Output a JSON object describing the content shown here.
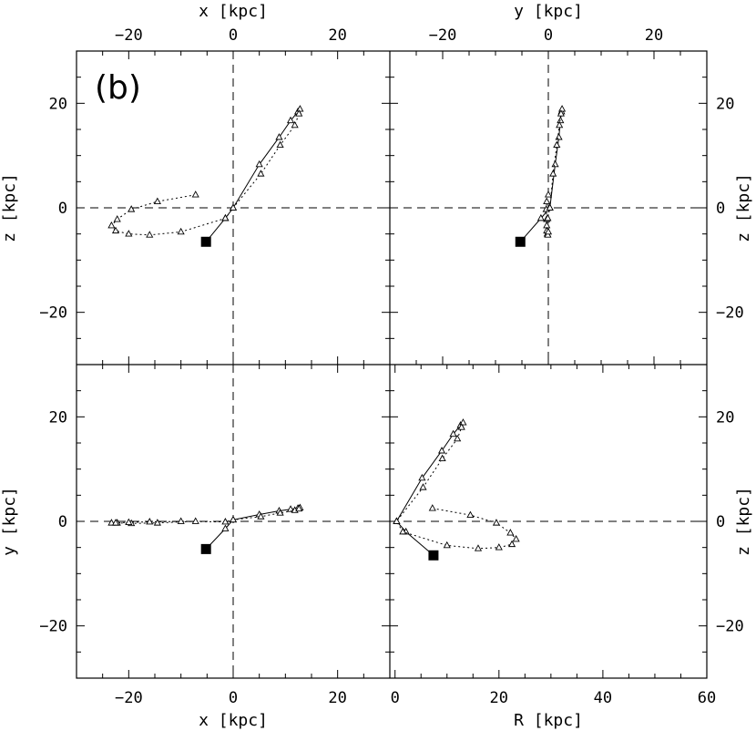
{
  "chart_data": {
    "type": "line",
    "title": "",
    "panel_tag": "(b)",
    "labels": {
      "top_left_x": "x [kpc]",
      "top_right_x": "y [kpc]",
      "bottom_left_x": "x [kpc]",
      "bottom_right_x": "R [kpc]",
      "left_top_y": "z [kpc]",
      "left_bottom_y": "y [kpc]",
      "right_top_y": "z [kpc]",
      "right_bottom_y": "z [kpc]"
    },
    "ranges": {
      "x": [
        -30,
        30
      ],
      "y": [
        -30,
        30
      ],
      "z": [
        -30,
        30
      ],
      "R": [
        -1,
        60
      ]
    },
    "ticks": {
      "major": [
        -20,
        0,
        20
      ],
      "major_R": [
        0,
        20,
        40,
        60
      ]
    },
    "start_point": {
      "x": -5.2,
      "y": -5.3,
      "z": -6.5,
      "R": 7.4
    },
    "series": [
      {
        "name": "solid orbit",
        "style": "solid",
        "points": [
          {
            "x": -5.2,
            "y": -5.3,
            "z": -6.5,
            "R": 7.4
          },
          {
            "x": -1.5,
            "y": -1.4,
            "z": -2.0,
            "R": 2.1
          },
          {
            "x": 0.0,
            "y": 0.3,
            "z": 0.0,
            "R": 0.3
          },
          {
            "x": 5.0,
            "y": 1.3,
            "z": 8.3,
            "R": 5.2
          },
          {
            "x": 8.8,
            "y": 2.0,
            "z": 13.5,
            "R": 9.0
          },
          {
            "x": 11.0,
            "y": 2.3,
            "z": 16.7,
            "R": 11.2
          },
          {
            "x": 12.4,
            "y": 2.5,
            "z": 18.4,
            "R": 12.6
          },
          {
            "x": 12.8,
            "y": 2.6,
            "z": 18.9,
            "R": 13.1
          }
        ]
      },
      {
        "name": "dotted orbit",
        "style": "dotted",
        "points": [
          {
            "x": -7.2,
            "y": 0.0,
            "z": 2.5,
            "R": 7.2
          },
          {
            "x": -14.5,
            "y": -0.3,
            "z": 1.2,
            "R": 14.5
          },
          {
            "x": -19.5,
            "y": -0.4,
            "z": -0.3,
            "R": 19.5
          },
          {
            "x": -22.2,
            "y": -0.3,
            "z": -2.2,
            "R": 22.2
          },
          {
            "x": -23.3,
            "y": -0.3,
            "z": -3.4,
            "R": 23.3
          },
          {
            "x": -22.5,
            "y": -0.3,
            "z": -4.4,
            "R": 22.5
          },
          {
            "x": -20.0,
            "y": -0.2,
            "z": -5.0,
            "R": 20.0
          },
          {
            "x": -16.0,
            "y": -0.1,
            "z": -5.2,
            "R": 16.0
          },
          {
            "x": -10.0,
            "y": 0.0,
            "z": -4.6,
            "R": 10.0
          },
          {
            "x": -1.5,
            "y": -0.1,
            "z": -2.0,
            "R": 1.5
          },
          {
            "x": 0.0,
            "y": 0.3,
            "z": 0.0,
            "R": 0.3
          },
          {
            "x": 5.3,
            "y": 0.9,
            "z": 6.5,
            "R": 5.4
          },
          {
            "x": 9.0,
            "y": 1.6,
            "z": 12.0,
            "R": 9.1
          },
          {
            "x": 11.8,
            "y": 2.1,
            "z": 15.8,
            "R": 12.0
          },
          {
            "x": 12.6,
            "y": 2.4,
            "z": 18.0,
            "R": 12.8
          }
        ]
      }
    ]
  }
}
